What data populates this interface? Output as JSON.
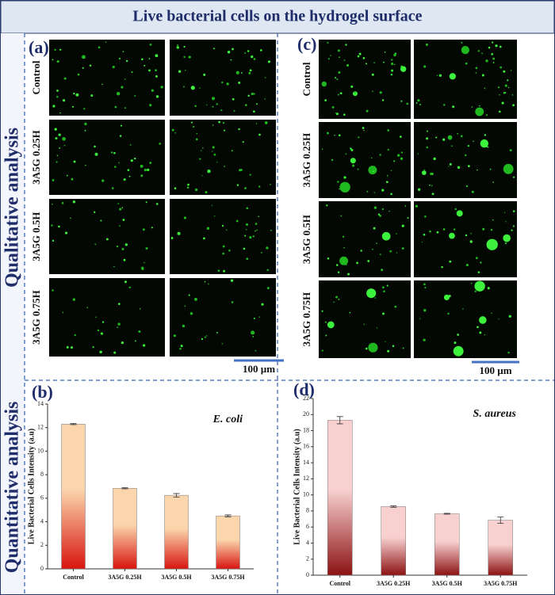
{
  "figure": {
    "title": "Live bacterial cells on the hydrogel surface",
    "sections": [
      "Qualitative analysis",
      "Quantitative analysis"
    ],
    "panels": [
      {
        "label": "(a)",
        "rows": [
          "Control",
          "3A5G 0.25H",
          "3A5G 0.5H",
          "3A5G 0.75H"
        ],
        "scale_bar": "100 µm"
      },
      {
        "label": "(c)",
        "rows": [
          "Control",
          "3A5G 0.25H",
          "3A5G 0.5H",
          "3A5G 0.75H"
        ],
        "scale_bar": "100 µm"
      }
    ]
  },
  "chart_data": [
    {
      "type": "bar",
      "panel_label": "(b)",
      "ylabel": "Live Bacterial Cells Intensity (a.u)",
      "categories": [
        "Control",
        "3A5G 0.25H",
        "3A5G 0.5H",
        "3A5G 0.75H"
      ],
      "series": [
        {
          "name": "E. coli",
          "values": [
            12.3,
            6.85,
            6.25,
            4.5
          ],
          "errors": [
            0.05,
            0.05,
            0.15,
            0.08
          ]
        }
      ],
      "colors": [
        "#fbd6ad",
        "#d8150f"
      ],
      "ylim": [
        0,
        14
      ],
      "yticks": [
        0,
        2,
        4,
        6,
        8,
        10,
        12,
        14
      ]
    },
    {
      "type": "bar",
      "panel_label": "(d)",
      "ylabel": "Live Bacterial Cells Intensity (a.u)",
      "categories": [
        "Control",
        "3A5G 0.25H",
        "3A5G 0.5H",
        "3A5G 0.75H"
      ],
      "series": [
        {
          "name": "S. aureus",
          "values": [
            19.3,
            8.55,
            7.65,
            6.85
          ],
          "errors": [
            0.45,
            0.1,
            0.05,
            0.4
          ]
        }
      ],
      "colors": [
        "#f8d0d0",
        "#8c1212"
      ],
      "ylim": [
        0,
        22
      ],
      "yticks": [
        0,
        2,
        4,
        6,
        8,
        10,
        12,
        14,
        16,
        18,
        20,
        22
      ]
    }
  ]
}
